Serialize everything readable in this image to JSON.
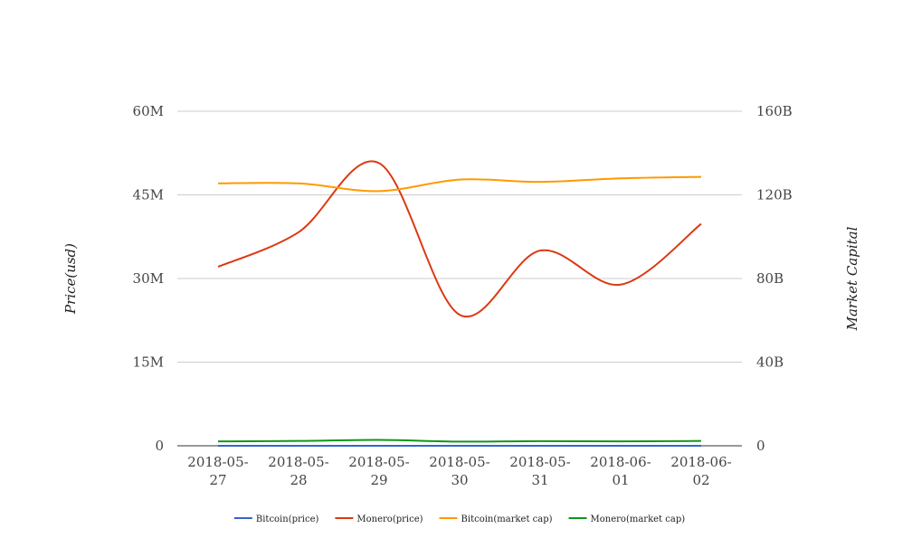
{
  "chart_data": {
    "type": "line",
    "title": "",
    "categories": [
      [
        "2018-05-",
        "27"
      ],
      [
        "2018-05-",
        "28"
      ],
      [
        "2018-05-",
        "29"
      ],
      [
        "2018-05-",
        "30"
      ],
      [
        "2018-05-",
        "31"
      ],
      [
        "2018-06-",
        "01"
      ],
      [
        "2018-06-",
        "02"
      ]
    ],
    "y_left": {
      "label": "Price(usd)",
      "min": 0,
      "max": 60000000,
      "ticks": [
        0,
        15000000,
        30000000,
        45000000,
        60000000
      ],
      "tick_labels": [
        "0",
        "15M",
        "30M",
        "45M",
        "60M"
      ]
    },
    "y_right": {
      "label": "Market Capital",
      "min": 0,
      "max": 160000000000,
      "ticks": [
        0,
        40000000000,
        80000000000,
        120000000000,
        160000000000
      ],
      "tick_labels": [
        "0",
        "40B",
        "80B",
        "120B",
        "160B"
      ]
    },
    "grid": true,
    "legend_position": "bottom",
    "series": [
      {
        "name": "Bitcoin(price)",
        "axis": "left",
        "color": "#3366cc",
        "values": [
          7400,
          7350,
          7450,
          7400,
          7500,
          7450,
          7600
        ]
      },
      {
        "name": "Monero(price)",
        "axis": "left",
        "color": "#dc3912",
        "values": [
          32100000,
          38300000,
          50700000,
          23500000,
          35000000,
          28900000,
          39800000
        ]
      },
      {
        "name": "Bitcoin(market cap)",
        "axis": "right",
        "color": "#ff9900",
        "values": [
          125500000000,
          125500000000,
          121800000000,
          127300000000,
          126200000000,
          127900000000,
          128600000000
        ]
      },
      {
        "name": "Monero(market cap)",
        "axis": "right",
        "color": "#109618",
        "values": [
          2100000000,
          2300000000,
          2800000000,
          2000000000,
          2200000000,
          2100000000,
          2300000000
        ]
      }
    ]
  }
}
